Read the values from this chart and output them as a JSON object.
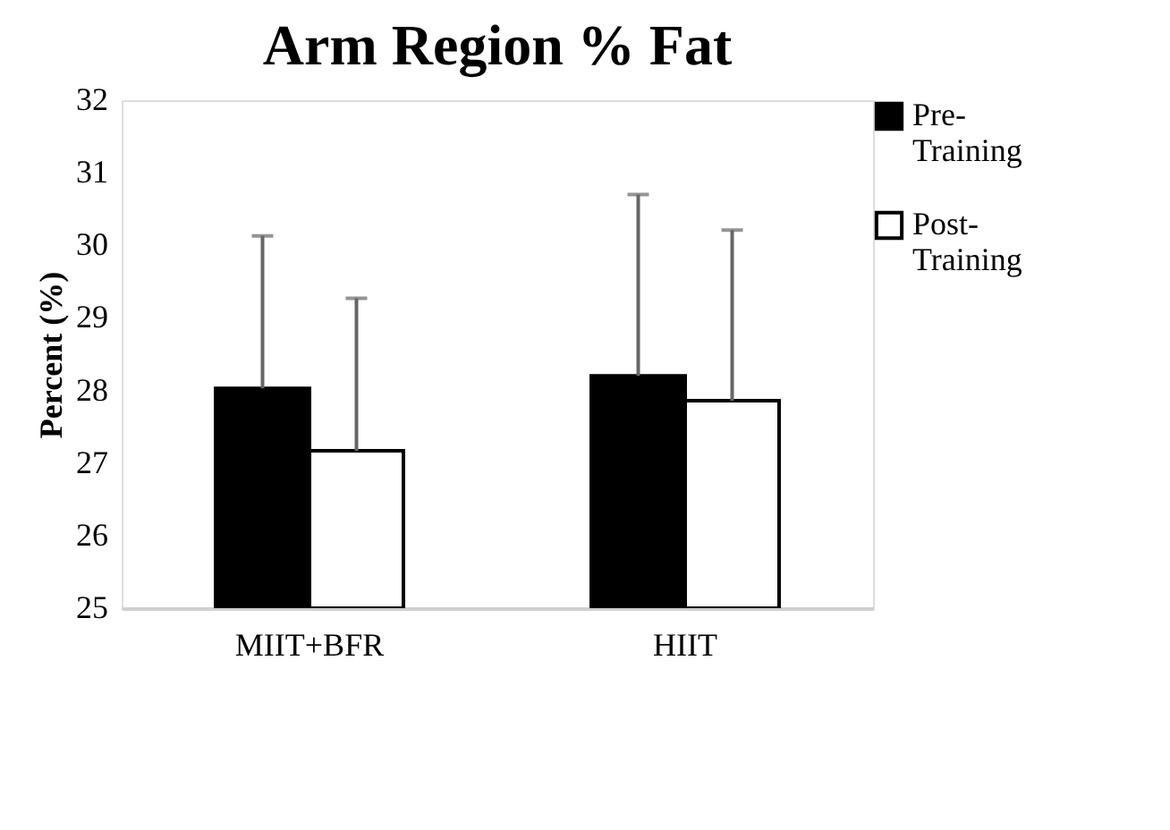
{
  "chart_data": {
    "type": "bar",
    "title": "Arm Region % Fat",
    "ylabel": "Percent (%)",
    "categories": [
      "MIIT+BFR",
      "HIIT"
    ],
    "series": [
      {
        "name": "Pre-Training",
        "color": "#000000",
        "values": [
          28.03,
          28.2
        ],
        "errors": [
          2.1,
          2.5
        ]
      },
      {
        "name": "Post-Training",
        "color": "#ffffff",
        "values": [
          27.17,
          27.86
        ],
        "errors": [
          2.1,
          2.35
        ]
      }
    ],
    "ylim": [
      25,
      32
    ],
    "yticks": [
      25,
      26,
      27,
      28,
      29,
      30,
      31,
      32
    ],
    "grid": false,
    "legend": "top right"
  }
}
